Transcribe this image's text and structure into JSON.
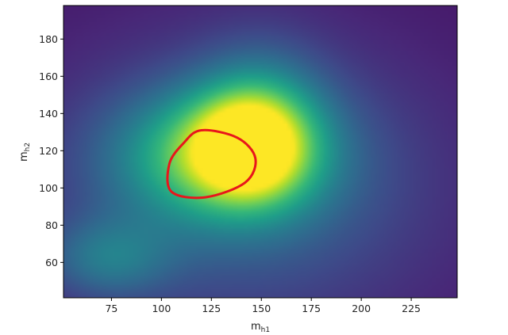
{
  "chart_data": {
    "type": "heatmap",
    "title": "",
    "xlabel": {
      "base": "m",
      "sub": "h1"
    },
    "ylabel": {
      "base": "m",
      "sub": "h2"
    },
    "xlim": [
      51,
      248
    ],
    "ylim": [
      41,
      198
    ],
    "xticks": [
      75,
      100,
      125,
      150,
      175,
      200,
      225
    ],
    "yticks": [
      60,
      80,
      100,
      120,
      140,
      160,
      180
    ],
    "colormap": "viridis",
    "grid": false,
    "blobs": [
      {
        "x": 130,
        "y": 118,
        "sx": 35,
        "sy": 24,
        "amp": 0.55
      },
      {
        "x": 143,
        "y": 122,
        "sx": 18,
        "sy": 18,
        "amp": 0.45
      },
      {
        "x": 150,
        "y": 135,
        "sx": 22,
        "sy": 28,
        "amp": 0.3
      },
      {
        "x": 73,
        "y": 62,
        "sx": 22,
        "sy": 15,
        "amp": 0.25
      },
      {
        "x": 140,
        "y": 100,
        "sx": 70,
        "sy": 55,
        "amp": 0.25
      }
    ],
    "contour": {
      "color": "#e8161b",
      "points": [
        [
          120,
          131
        ],
        [
          138,
          127
        ],
        [
          147,
          116
        ],
        [
          142,
          103
        ],
        [
          122,
          95
        ],
        [
          105,
          98
        ],
        [
          104,
          113
        ],
        [
          111,
          124
        ],
        [
          120,
          131
        ]
      ]
    }
  }
}
